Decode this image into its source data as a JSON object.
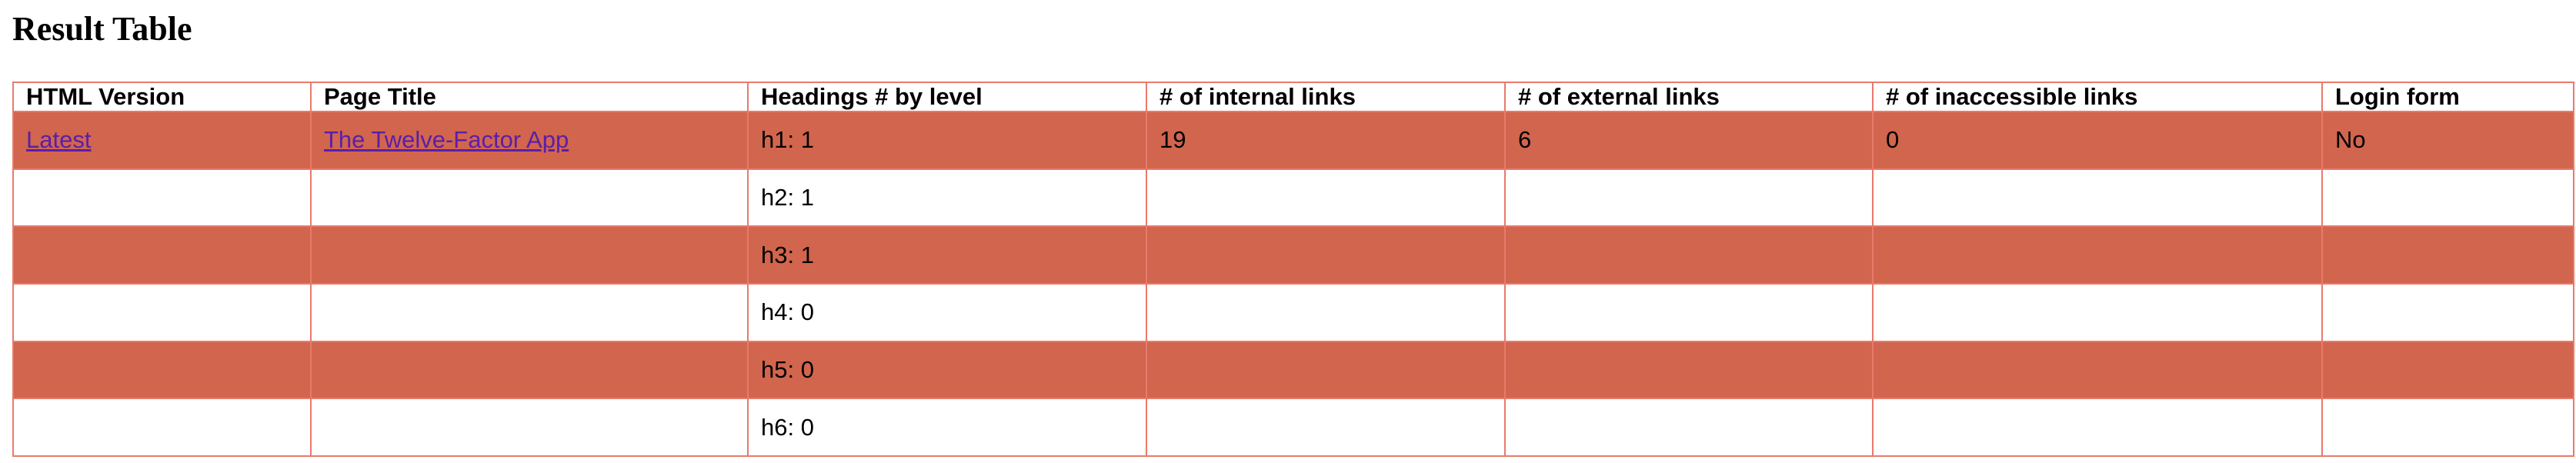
{
  "page": {
    "title": "Result Table"
  },
  "colors": {
    "border": "#e87a6c",
    "row_highlight": "#d2654d",
    "link": "#5a1fa8"
  },
  "table": {
    "headers": [
      "HTML Version",
      "Page Title",
      "Headings # by level",
      "# of internal links",
      "# of external links",
      "# of inaccessible links",
      "Login form"
    ],
    "row": {
      "html_version": "Latest",
      "page_title": "The Twelve-Factor App",
      "internal_links": "19",
      "external_links": "6",
      "inaccessible_links": "0",
      "login_form": "No"
    },
    "headings": [
      "h1: 1",
      "h2: 1",
      "h3: 1",
      "h4: 0",
      "h5: 0",
      "h6: 0"
    ]
  }
}
